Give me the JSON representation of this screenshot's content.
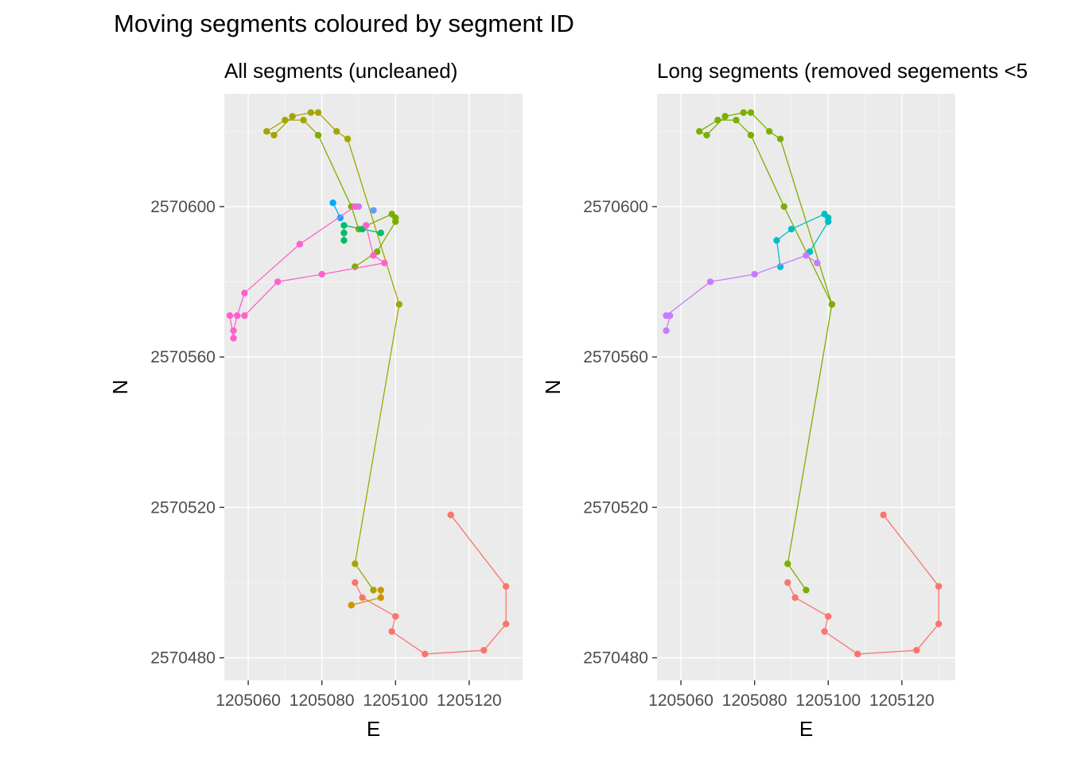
{
  "title": "Moving segments coloured by segment ID",
  "chart_data": [
    {
      "type": "scatter",
      "subtitle": "All segments (uncleaned)",
      "xlabel": "E",
      "ylabel": "N",
      "xlim": [
        1205053.5,
        1205134.5
      ],
      "ylim": [
        2570474,
        2570630
      ],
      "xticks": [
        1205060,
        1205080,
        1205100,
        1205120
      ],
      "xtick_labels": [
        "1205060",
        "1205080",
        "1205100",
        "1205120"
      ],
      "yticks": [
        2570480,
        2570520,
        2570560,
        2570600
      ],
      "ytick_labels": [
        "2570480",
        "2570520",
        "2570560",
        "2570600"
      ],
      "grid": true,
      "series": [
        {
          "color": "#F8766D",
          "points": [
            [
              1205115,
              2570518
            ],
            [
              1205130,
              2570499
            ],
            [
              1205130,
              2570489
            ],
            [
              1205124,
              2570482
            ],
            [
              1205108,
              2570481
            ],
            [
              1205099,
              2570487
            ],
            [
              1205100,
              2570491
            ],
            [
              1205091,
              2570496
            ],
            [
              1205089,
              2570500
            ]
          ]
        },
        {
          "color": "#CD9600",
          "points": [
            [
              1205088,
              2570494
            ],
            [
              1205096,
              2570496
            ],
            [
              1205096,
              2570498
            ]
          ]
        },
        {
          "color": "#A3A500",
          "points": [
            [
              1205094,
              2570498
            ],
            [
              1205089,
              2570505
            ],
            [
              1205101,
              2570574
            ],
            [
              1205087,
              2570618
            ],
            [
              1205084,
              2570620
            ],
            [
              1205079,
              2570625
            ],
            [
              1205077,
              2570625
            ],
            [
              1205072,
              2570624
            ],
            [
              1205067,
              2570619
            ],
            [
              1205065,
              2570620
            ],
            [
              1205070,
              2570623
            ],
            [
              1205075,
              2570623
            ],
            [
              1205079,
              2570619
            ]
          ]
        },
        {
          "color": "#7CAE00",
          "points": [
            [
              1205079,
              2570619
            ],
            [
              1205088,
              2570600
            ],
            [
              1205090,
              2570594
            ],
            [
              1205099,
              2570598
            ],
            [
              1205100,
              2570597
            ],
            [
              1205100,
              2570596
            ],
            [
              1205095,
              2570588
            ],
            [
              1205089,
              2570584
            ]
          ]
        },
        {
          "color": "#00BE67",
          "points": [
            [
              1205086,
              2570591
            ],
            [
              1205086,
              2570593
            ],
            [
              1205086,
              2570595
            ],
            [
              1205091,
              2570594
            ],
            [
              1205096,
              2570593
            ]
          ]
        },
        {
          "color": "#00BFC4",
          "points": [
            [
              1205092,
              2570595
            ]
          ]
        },
        {
          "color": "#00A9FF",
          "points": [
            [
              1205083,
              2570601
            ],
            [
              1205085,
              2570597
            ]
          ]
        },
        {
          "color": "#619CFF",
          "points": [
            [
              1205094,
              2570599
            ]
          ]
        },
        {
          "color": "#C77CFF",
          "points": [
            [
              1205090,
              2570600
            ]
          ]
        },
        {
          "color": "#FF61CC",
          "points": [
            [
              1205089,
              2570600
            ],
            [
              1205074,
              2570590
            ],
            [
              1205059,
              2570577
            ],
            [
              1205057,
              2570571
            ],
            [
              1205056,
              2570567
            ],
            [
              1205056,
              2570565
            ],
            [
              1205055,
              2570571
            ],
            [
              1205059,
              2570571
            ],
            [
              1205068,
              2570580
            ],
            [
              1205080,
              2570582
            ],
            [
              1205097,
              2570585
            ],
            [
              1205094,
              2570587
            ],
            [
              1205092,
              2570595
            ]
          ]
        }
      ]
    },
    {
      "type": "scatter",
      "subtitle": "Long segments (removed segements <5",
      "xlabel": "E",
      "ylabel": "N",
      "xlim": [
        1205053.5,
        1205134.5
      ],
      "ylim": [
        2570474,
        2570630
      ],
      "xticks": [
        1205060,
        1205080,
        1205100,
        1205120
      ],
      "xtick_labels": [
        "1205060",
        "1205080",
        "1205100",
        "1205120"
      ],
      "yticks": [
        2570480,
        2570520,
        2570560,
        2570600
      ],
      "ytick_labels": [
        "2570480",
        "2570520",
        "2570560",
        "2570600"
      ],
      "grid": true,
      "series": [
        {
          "color": "#F8766D",
          "points": [
            [
              1205115,
              2570518
            ],
            [
              1205130,
              2570499
            ],
            [
              1205130,
              2570489
            ],
            [
              1205124,
              2570482
            ],
            [
              1205108,
              2570481
            ],
            [
              1205099,
              2570487
            ],
            [
              1205100,
              2570491
            ],
            [
              1205091,
              2570496
            ],
            [
              1205089,
              2570500
            ]
          ]
        },
        {
          "color": "#7CAE00",
          "points": [
            [
              1205094,
              2570498
            ],
            [
              1205089,
              2570505
            ],
            [
              1205101,
              2570574
            ],
            [
              1205087,
              2570618
            ],
            [
              1205084,
              2570620
            ],
            [
              1205079,
              2570625
            ],
            [
              1205077,
              2570625
            ],
            [
              1205072,
              2570624
            ],
            [
              1205067,
              2570619
            ],
            [
              1205065,
              2570620
            ],
            [
              1205070,
              2570623
            ],
            [
              1205075,
              2570623
            ],
            [
              1205079,
              2570619
            ],
            [
              1205088,
              2570600
            ],
            [
              1205101,
              2570574
            ]
          ]
        },
        {
          "color": "#00BFC4",
          "points": [
            [
              1205087,
              2570584
            ],
            [
              1205086,
              2570591
            ],
            [
              1205090,
              2570594
            ],
            [
              1205099,
              2570598
            ],
            [
              1205100,
              2570597
            ],
            [
              1205100,
              2570596
            ],
            [
              1205095,
              2570588
            ]
          ]
        },
        {
          "color": "#C77CFF",
          "points": [
            [
              1205097,
              2570585
            ],
            [
              1205094,
              2570587
            ],
            [
              1205080,
              2570582
            ],
            [
              1205068,
              2570580
            ],
            [
              1205056,
              2570571
            ],
            [
              1205057,
              2570571
            ],
            [
              1205056,
              2570567
            ]
          ]
        }
      ]
    }
  ]
}
